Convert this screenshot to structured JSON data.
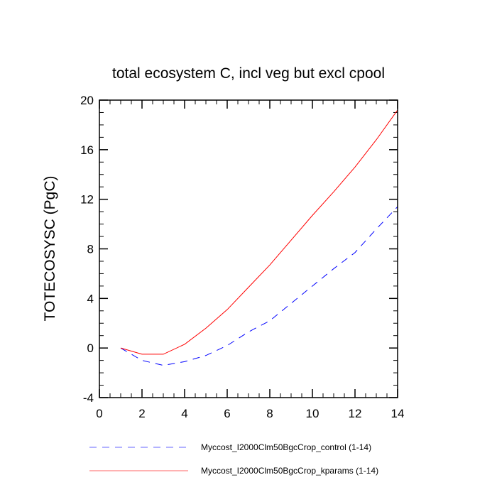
{
  "chart_data": {
    "type": "line",
    "title": "total ecosystem C, incl veg but excl cpool",
    "xlabel": "",
    "ylabel": "TOTECOSYSC  (PgC)",
    "xlim": [
      0,
      14
    ],
    "ylim": [
      -4,
      20
    ],
    "xticks": [
      0,
      2,
      4,
      6,
      8,
      10,
      12,
      14
    ],
    "yticks": [
      -4,
      0,
      4,
      8,
      12,
      16,
      20
    ],
    "grid": false,
    "legend_position": "bottom",
    "x": [
      1,
      2,
      3,
      4,
      5,
      6,
      7,
      8,
      9,
      10,
      11,
      12,
      13,
      14
    ],
    "series": [
      {
        "name": "Myccost_I2000Clm50BgcCrop_control (1-14)",
        "color": "#0000ff",
        "dash": "dashed",
        "values": [
          0,
          -1.0,
          -1.4,
          -1.1,
          -0.6,
          0.2,
          1.3,
          2.2,
          3.6,
          5.0,
          6.4,
          7.7,
          9.6,
          11.4
        ]
      },
      {
        "name": "Myccost_I2000Clm50BgcCrop_kparams (1-14)",
        "color": "#ff0000",
        "dash": "solid",
        "values": [
          0,
          -0.5,
          -0.5,
          0.3,
          1.6,
          3.1,
          4.9,
          6.7,
          8.7,
          10.7,
          12.6,
          14.6,
          16.8,
          19.2
        ]
      }
    ]
  }
}
